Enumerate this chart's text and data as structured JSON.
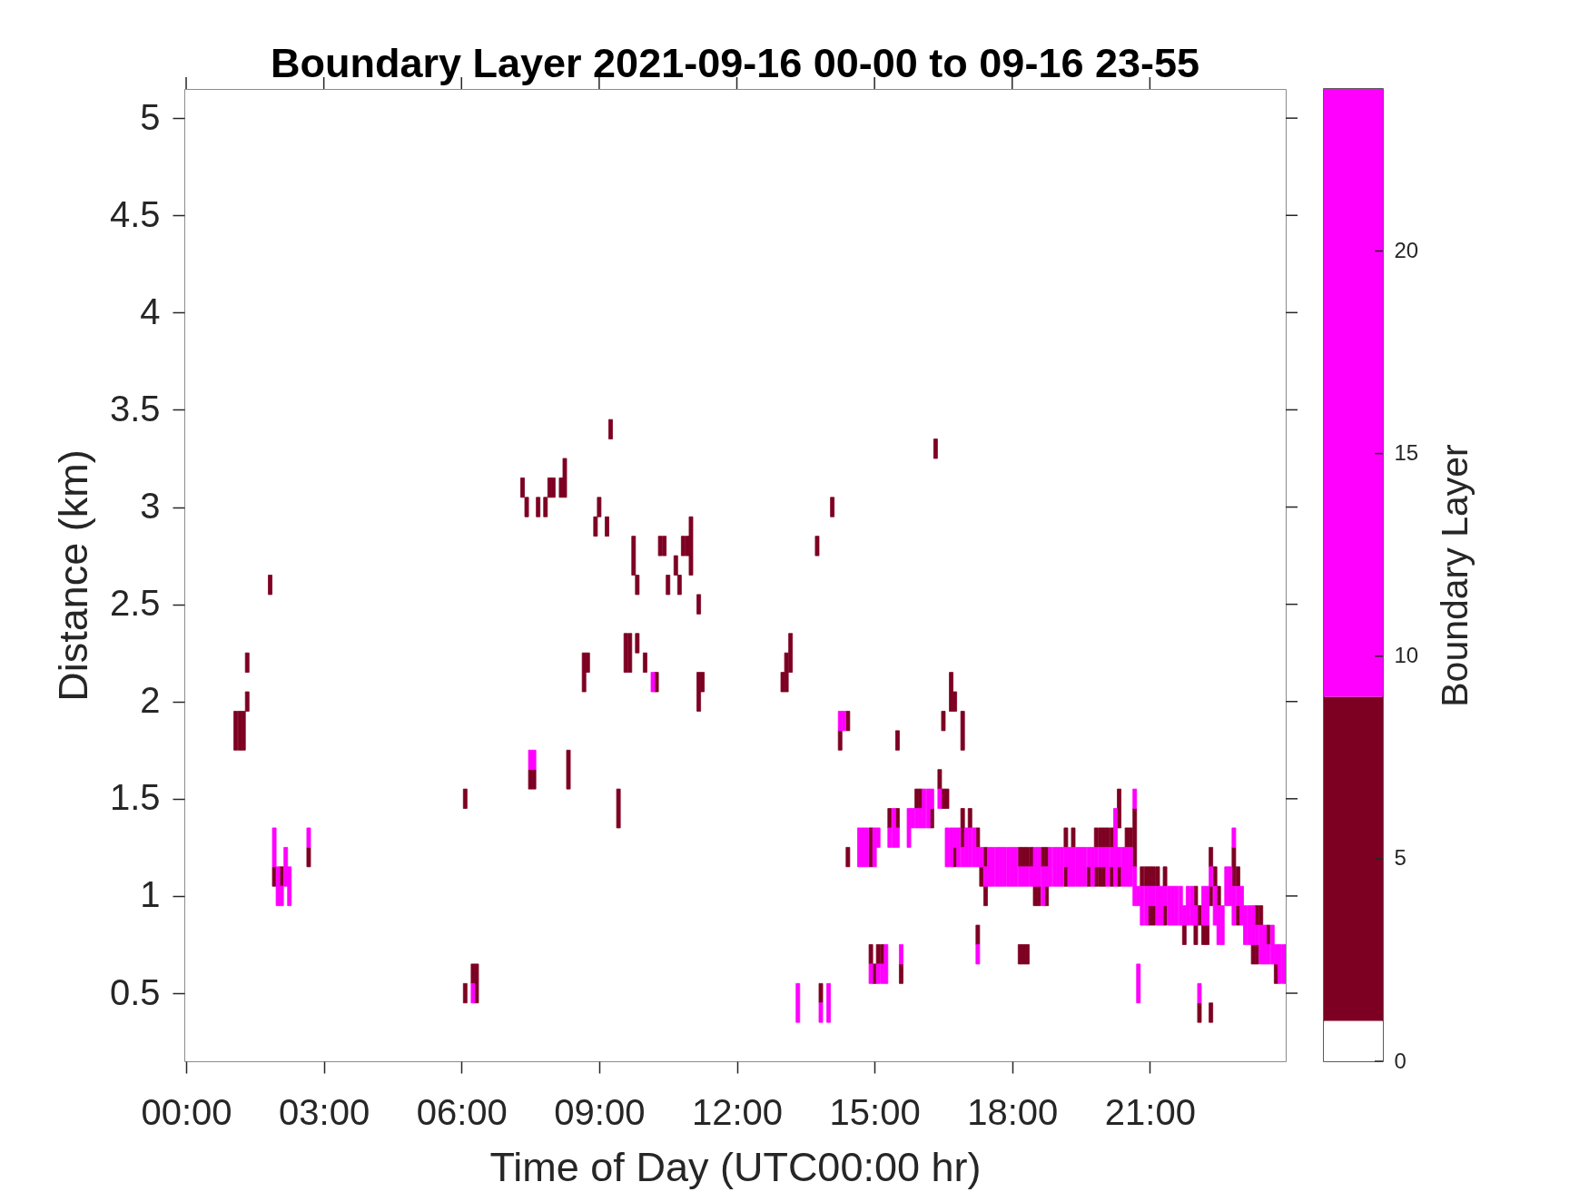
{
  "chart_data": [
    {
      "type": "bar",
      "title": "Boundary Layer 2021-09-16 00-00 to 09-16 23-55",
      "xlabel": "Time of Day (UTC00:00 hr)",
      "ylabel": "Distance (km)",
      "xlim": [
        -0.04,
        23.96
      ],
      "xticks": [
        {
          "value": 0,
          "label": "00:00"
        },
        {
          "value": 3,
          "label": "03:00"
        },
        {
          "value": 6,
          "label": "06:00"
        },
        {
          "value": 9,
          "label": "09:00"
        },
        {
          "value": 12,
          "label": "12:00"
        },
        {
          "value": 15,
          "label": "15:00"
        },
        {
          "value": 18,
          "label": "18:00"
        },
        {
          "value": 21,
          "label": "21:00"
        }
      ],
      "ylim": [
        0.15,
        5.15
      ],
      "yticks": [
        0.5,
        1,
        1.5,
        2,
        2.5,
        3,
        3.5,
        4,
        4.5,
        5
      ],
      "series": [
        {
          "color": "#7d0022",
          "x": [
            1.08,
            1.17,
            1.25,
            1.33,
            1.83,
            1.92,
            2.08,
            2.67,
            6.08,
            6.25,
            6.33,
            7.33,
            7.42,
            7.5,
            7.58,
            7.67,
            7.83,
            7.92,
            8,
            8.17,
            8.25,
            8.33,
            8.67,
            8.75,
            8.92,
            9,
            9.17,
            9.25,
            9.42,
            9.58,
            9.67,
            9.75,
            9.83,
            10,
            10.25,
            10.33,
            10.42,
            10.5,
            10.67,
            10.75,
            10.83,
            10.92,
            11,
            11.17,
            11.25,
            13,
            13.08,
            13.17,
            13.75,
            13.83,
            14.08,
            14.25,
            14.42,
            14.92,
            15,
            15.08,
            15.17,
            15.33,
            15.5,
            15.58,
            15.92,
            16,
            16.25,
            16.33,
            16.42,
            16.5,
            16.58,
            16.67,
            16.75,
            16.92,
            17.08,
            17.25,
            17.33,
            17.42,
            18.17,
            18.25,
            18.33,
            18.42,
            18.5,
            18.58,
            18.67,
            18.75,
            19.17,
            19.33,
            19.67,
            19.83,
            19.92,
            20,
            20.08,
            20.17,
            20.33,
            20.5,
            20.58,
            20.67,
            20.83,
            20.92,
            21,
            21.08,
            21.17,
            21.33,
            21.75,
            22,
            22.08,
            22.17,
            22.25,
            22.33,
            22.42,
            22.5,
            22.83,
            22.92,
            23.25,
            23.33,
            23.42,
            23.58,
            23.75
          ],
          "base": [
            1.75,
            1.75,
            1.75,
            2.15,
            2.55,
            1.05,
            1.05,
            1.15,
            1.45,
            0.55,
            0.45,
            3.05,
            2.95,
            1.55,
            1.55,
            2.95,
            2.95,
            3.05,
            3.05,
            3.05,
            3.05,
            1.55,
            2.05,
            2.15,
            2.85,
            2.95,
            2.85,
            3.35,
            1.35,
            2.15,
            2.15,
            2.65,
            2.55,
            2.15,
            2.05,
            2.75,
            2.75,
            2.55,
            2.65,
            2.55,
            2.75,
            2.75,
            2.65,
            2.45,
            2.05,
            2.05,
            2.05,
            2.15,
            2.75,
            0.45,
            2.95,
            1.75,
            1.85,
            1.15,
            0.55,
            0.65,
            0.65,
            1.35,
            1.75,
            0.55,
            1.45,
            1.45,
            1.35,
            3.25,
            1.55,
            1.85,
            1.45,
            1.95,
            1.95,
            1.75,
            1.35,
            1.25,
            1.05,
            1.15,
            1.15,
            1.15,
            1.15,
            1.15,
            0.95,
            0.95,
            1.15,
            1.15,
            1.25,
            1.25,
            1.05,
            1.25,
            1.25,
            1.25,
            1.25,
            1.25,
            1.35,
            1.25,
            1.25,
            1.15,
            1.05,
            1.05,
            1.05,
            1.05,
            1.05,
            1.05,
            0.75,
            0.95,
            0.85,
            0.75,
            0.75,
            1.15,
            1.05,
            0.95,
            1.05,
            1.05,
            0.65,
            0.85,
            0.85,
            0.75,
            0.55
          ],
          "values": [
            0.2,
            0.2,
            0.2,
            0.1,
            0.1,
            0.1,
            0.1,
            0.1,
            0.1,
            0.1,
            0.2,
            0.1,
            0.1,
            0.1,
            0.1,
            0.1,
            0.1,
            0.1,
            0.1,
            0.1,
            0.2,
            0.2,
            0.2,
            0.1,
            0.1,
            0.1,
            0.1,
            0.1,
            0.2,
            0.2,
            0.2,
            0.2,
            0.1,
            0.1,
            0.1,
            0.1,
            0.1,
            0.1,
            0.1,
            0.1,
            0.1,
            0.1,
            0.3,
            0.1,
            0.1,
            0.1,
            0.2,
            0.2,
            0.1,
            0.1,
            0.1,
            0.1,
            0.1,
            0.2,
            0.1,
            0.1,
            0.1,
            0.1,
            0.1,
            0.1,
            0.1,
            0.1,
            0.1,
            0.1,
            0.1,
            0.1,
            0.1,
            0.2,
            0.1,
            0.2,
            0.1,
            0.1,
            0.1,
            0.1,
            0.1,
            0.1,
            0.1,
            0.1,
            0.1,
            0.1,
            0.1,
            0.1,
            0.1,
            0.1,
            0.1,
            0.1,
            0.1,
            0.1,
            0.1,
            0.1,
            0.2,
            0.1,
            0.1,
            0.3,
            0.1,
            0.1,
            0.1,
            0.1,
            0.1,
            0.1,
            0.1,
            0.1,
            0.1,
            0.1,
            0.1,
            0.1,
            0.1,
            0.1,
            0.2,
            0.1,
            0.1,
            0.1,
            0.1,
            0.1,
            0.1
          ]
        },
        {
          "color": "#7d0022",
          "x": [
            1.33,
            6.08,
            9.83,
            11.17,
            14.42,
            14.92,
            15.5,
            16.5,
            16.75,
            16.92,
            17.25,
            17.42,
            18.17,
            18.25,
            18.33,
            18.75,
            19.17,
            19.83,
            19.92,
            20,
            20.17,
            20.33,
            21,
            21.08,
            21.33,
            22,
            22.08,
            22.33,
            22.92,
            23.33
          ],
          "base": [
            1.95,
            0.45,
            2.25,
            1.95,
            1.15,
            0.65,
            1.35,
            1.45,
            1.15,
            1.25,
            0.75,
            0.95,
            0.65,
            0.65,
            0.65,
            0.95,
            1.05,
            1.05,
            1.05,
            1.05,
            1.05,
            1.05,
            0.85,
            0.85,
            0.85,
            0.75,
            0.35,
            0.95,
            0.85,
            0.65
          ],
          "values": [
            0.1,
            0.1,
            0.1,
            0.2,
            0.1,
            0.1,
            0.1,
            0.1,
            0.1,
            0.2,
            0.1,
            0.1,
            0.1,
            0.1,
            0.1,
            0.1,
            0.1,
            0.1,
            0.1,
            0.1,
            0.1,
            0.1,
            0.1,
            0.1,
            0.1,
            0.1,
            0.1,
            0.1,
            0.1,
            0.1
          ]
        },
        {
          "color": "#7d0022",
          "x": [
            22.33
          ],
          "base": [
            0.35
          ],
          "values": [
            0.1
          ]
        },
        {
          "color": "#ff00ff",
          "x": [
            1.92,
            2,
            2.08,
            2.17,
            2.25,
            2.67,
            6.25,
            7.5,
            7.58,
            10.17,
            13.33,
            13.83,
            14,
            14.25,
            14.33,
            14.67,
            14.75,
            14.83,
            14.92,
            15,
            15.08,
            15.17,
            15.25,
            15.33,
            15.42,
            15.5,
            15.58,
            15.75,
            15.83,
            15.92,
            16,
            16.08,
            16.17,
            16.25,
            16.42,
            16.58,
            16.67,
            16.75,
            16.83,
            16.92,
            17,
            17.08,
            17.17,
            17.25,
            17.33,
            17.42,
            17.5,
            17.58,
            17.67,
            17.75,
            17.83,
            17.92,
            18,
            18.08,
            18.17,
            18.25,
            18.33,
            18.42,
            18.5,
            18.58,
            18.67,
            18.75,
            18.83,
            18.92,
            19,
            19.08,
            19.17,
            19.25,
            19.33,
            19.42,
            19.5,
            19.58,
            19.67,
            19.75,
            19.83,
            19.92,
            20,
            20.08,
            20.17,
            20.25,
            20.33,
            20.42,
            20.5,
            20.58,
            20.67,
            20.75,
            20.83,
            20.92,
            21,
            21.08,
            21.17,
            21.25,
            21.33,
            21.42,
            21.5,
            21.58,
            21.67,
            21.75,
            21.83,
            21.92,
            22,
            22.08,
            22.17,
            22.25,
            22.33,
            22.42,
            22.5,
            22.58,
            22.67,
            22.75,
            22.83,
            22.92,
            23,
            23.08,
            23.17,
            23.25,
            23.33,
            23.42,
            23.5,
            23.58,
            23.67,
            23.75,
            23.83,
            23.92
          ],
          "base": [
            1.15,
            0.95,
            0.95,
            1.05,
            0.95,
            1.25,
            0.45,
            1.65,
            1.65,
            2.05,
            0.35,
            0.35,
            0.35,
            1.85,
            1.85,
            1.15,
            1.15,
            1.15,
            0.55,
            1.15,
            1.25,
            0.55,
            0.55,
            1.25,
            1.25,
            1.25,
            0.65,
            1.25,
            1.35,
            1.35,
            1.35,
            1.35,
            1.35,
            1.45,
            1.45,
            1.15,
            1.15,
            1.25,
            1.15,
            1.15,
            1.15,
            1.15,
            1.15,
            1.15,
            1.15,
            1.05,
            1.05,
            1.05,
            1.05,
            1.05,
            1.05,
            1.05,
            1.05,
            1.05,
            1.05,
            1.05,
            1.05,
            1.05,
            1.05,
            1.05,
            0.95,
            1.05,
            1.05,
            1.05,
            1.05,
            1.05,
            1.15,
            1.05,
            1.05,
            1.05,
            1.05,
            1.05,
            1.15,
            1.05,
            1.15,
            1.15,
            1.15,
            1.05,
            1.15,
            1.05,
            1.15,
            1.05,
            1.05,
            1.05,
            1.45,
            0.95,
            0.85,
            0.85,
            0.95,
            0.95,
            0.85,
            0.85,
            0.95,
            0.85,
            0.85,
            0.85,
            0.85,
            0.85,
            0.85,
            0.85,
            0.85,
            0.45,
            0.85,
            0.85,
            1.05,
            0.85,
            0.75,
            0.75,
            0.95,
            0.95,
            1.25,
            0.95,
            0.85,
            0.75,
            0.75,
            0.75,
            0.75,
            0.65,
            0.65,
            0.65,
            0.65,
            0.65,
            0.55,
            0.55
          ],
          "values": [
            0.2,
            0.2,
            0.1,
            0.2,
            0.2,
            0.1,
            0.1,
            0.1,
            0.1,
            0.1,
            0.2,
            0.1,
            0.2,
            0.1,
            0.1,
            0.2,
            0.2,
            0.2,
            0.1,
            0.2,
            0.1,
            0.1,
            0.2,
            0.1,
            0.2,
            0.1,
            0.1,
            0.2,
            0.1,
            0.1,
            0.1,
            0.2,
            0.2,
            0.1,
            0.1,
            0.2,
            0.2,
            0.1,
            0.2,
            0.1,
            0.2,
            0.2,
            0.2,
            0.1,
            0.1,
            0.1,
            0.2,
            0.2,
            0.2,
            0.2,
            0.2,
            0.2,
            0.2,
            0.2,
            0.1,
            0.1,
            0.1,
            0.1,
            0.2,
            0.2,
            0.2,
            0.1,
            0.2,
            0.2,
            0.2,
            0.2,
            0.1,
            0.2,
            0.2,
            0.2,
            0.2,
            0.2,
            0.1,
            0.2,
            0.1,
            0.1,
            0.1,
            0.2,
            0.1,
            0.4,
            0.1,
            0.2,
            0.2,
            0.2,
            0.1,
            0.1,
            0.2,
            0.2,
            0.1,
            0.1,
            0.2,
            0.2,
            0.1,
            0.2,
            0.2,
            0.2,
            0.2,
            0.1,
            0.2,
            0.2,
            0.1,
            0.1,
            0.2,
            0.2,
            0.1,
            0.2,
            0.2,
            0.2,
            0.2,
            0.2,
            0.1,
            0.1,
            0.2,
            0.2,
            0.2,
            0.2,
            0.1,
            0.2,
            0.2,
            0.1,
            0.2,
            0.1,
            0.2,
            0.2
          ]
        },
        {
          "color": "#ff00ff",
          "x": [
            15.08,
            17.25,
            20.67,
            20.75,
            22.83
          ],
          "base": [
            0.55,
            0.65,
            0.95,
            0.45,
            0.85
          ],
          "values": [
            0.1,
            0.1,
            0.2,
            0.2,
            0.2
          ]
        }
      ]
    },
    {
      "type": "bar",
      "stacked": true,
      "categories": [
        null
      ],
      "ylabel": "Boundary Layer",
      "ylim": [
        0,
        24
      ],
      "yticks": [
        0,
        5,
        10,
        15,
        20
      ],
      "series": [
        {
          "color": "#ffffff",
          "values": [
            1
          ]
        },
        {
          "color": "#7d0022",
          "values": [
            8
          ]
        },
        {
          "color": "#ff00ff",
          "values": [
            15
          ]
        }
      ]
    }
  ]
}
